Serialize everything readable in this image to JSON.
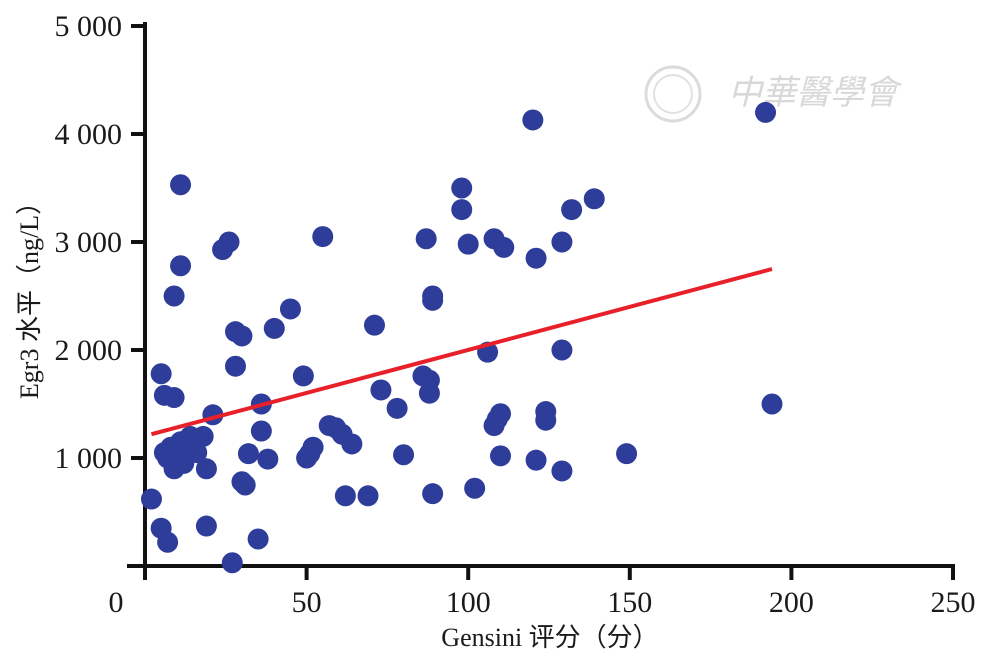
{
  "chart_data": {
    "type": "scatter",
    "xlabel": "Gensini 评分（分）",
    "ylabel": "Egr3 水平（ng/L）",
    "xlim": [
      0,
      250
    ],
    "ylim": [
      0,
      5000
    ],
    "x_ticks": [
      0,
      50,
      100,
      150,
      200,
      250
    ],
    "y_ticks": [
      1000,
      2000,
      3000,
      4000,
      5000
    ],
    "x_tick_labels": [
      "0",
      "50",
      "100",
      "150",
      "200",
      "250"
    ],
    "y_tick_labels": [
      "1 000",
      "2 000",
      "3 000",
      "4 000",
      "5 000"
    ],
    "point_color": "#2e3d9a",
    "line_color": "#e8202a",
    "fit_line": {
      "x": [
        2,
        194
      ],
      "y": [
        1220,
        2750
      ]
    },
    "points": [
      [
        2,
        620
      ],
      [
        5,
        350
      ],
      [
        6,
        1050
      ],
      [
        7,
        220
      ],
      [
        7,
        1000
      ],
      [
        8,
        1100
      ],
      [
        9,
        900
      ],
      [
        10,
        1000
      ],
      [
        11,
        1150
      ],
      [
        12,
        950
      ],
      [
        13,
        1100
      ],
      [
        14,
        1200
      ],
      [
        15,
        1150
      ],
      [
        16,
        1050
      ],
      [
        18,
        1200
      ],
      [
        19,
        900
      ],
      [
        19,
        370
      ],
      [
        21,
        1400
      ],
      [
        5,
        1780
      ],
      [
        6,
        1580
      ],
      [
        9,
        1560
      ],
      [
        9,
        2500
      ],
      [
        11,
        2780
      ],
      [
        11,
        3530
      ],
      [
        24,
        2930
      ],
      [
        26,
        3000
      ],
      [
        28,
        2170
      ],
      [
        30,
        2130
      ],
      [
        28,
        1850
      ],
      [
        27,
        30
      ],
      [
        30,
        780
      ],
      [
        31,
        750
      ],
      [
        32,
        1040
      ],
      [
        35,
        250
      ],
      [
        36,
        1250
      ],
      [
        36,
        1500
      ],
      [
        38,
        990
      ],
      [
        40,
        2200
      ],
      [
        45,
        2380
      ],
      [
        49,
        1760
      ],
      [
        50,
        1000
      ],
      [
        51,
        1040
      ],
      [
        52,
        1100
      ],
      [
        55,
        3050
      ],
      [
        57,
        1300
      ],
      [
        59,
        1280
      ],
      [
        61,
        1220
      ],
      [
        62,
        650
      ],
      [
        64,
        1130
      ],
      [
        69,
        650
      ],
      [
        71,
        2230
      ],
      [
        73,
        1630
      ],
      [
        78,
        1460
      ],
      [
        80,
        1030
      ],
      [
        87,
        3030
      ],
      [
        86,
        1760
      ],
      [
        88,
        1600
      ],
      [
        88,
        1720
      ],
      [
        89,
        2500
      ],
      [
        89,
        2460
      ],
      [
        89,
        670
      ],
      [
        98,
        3500
      ],
      [
        98,
        3300
      ],
      [
        100,
        2980
      ],
      [
        102,
        720
      ],
      [
        106,
        1980
      ],
      [
        108,
        1300
      ],
      [
        108,
        3030
      ],
      [
        109,
        1360
      ],
      [
        110,
        1020
      ],
      [
        110,
        1410
      ],
      [
        111,
        2950
      ],
      [
        120,
        4130
      ],
      [
        121,
        2850
      ],
      [
        121,
        980
      ],
      [
        124,
        1430
      ],
      [
        124,
        1350
      ],
      [
        129,
        2000
      ],
      [
        129,
        3000
      ],
      [
        129,
        880
      ],
      [
        132,
        3300
      ],
      [
        139,
        3400
      ],
      [
        149,
        1040
      ],
      [
        192,
        4200
      ],
      [
        194,
        1500
      ]
    ]
  },
  "watermark": {
    "seal_text": "中华医学会",
    "script_text": "中華醫學會"
  }
}
